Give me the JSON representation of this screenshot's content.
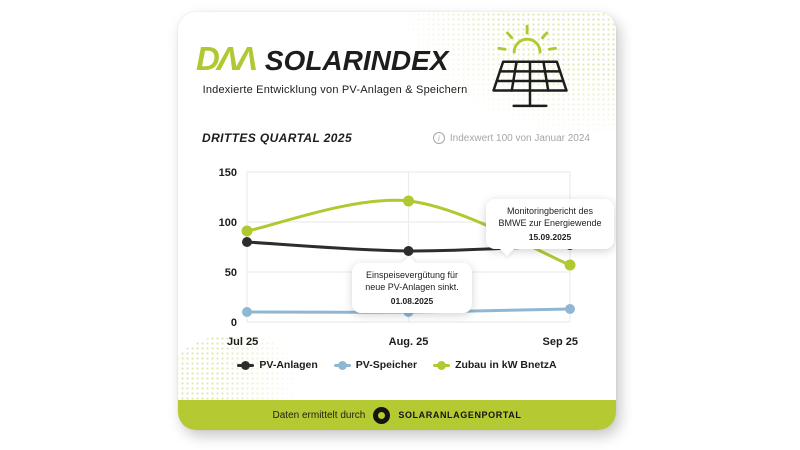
{
  "header": {
    "logo_text": "DΛΛ",
    "title": "SOLARINDEX",
    "subtitle": "Indexierte Entwicklung von PV-Anlagen & Speichern"
  },
  "section": {
    "heading": "DRITTES QUARTAL 2025",
    "index_note": "Indexwert 100 von Januar 2024"
  },
  "icons": {
    "info": "i",
    "solar_panel": "solar-panel-with-sun",
    "portal_logo": "black-ring"
  },
  "colors": {
    "brand_green": "#b2c832",
    "line_black": "#2d2d2d",
    "line_blue": "#8fb7d4",
    "grid": "#ececec",
    "tick_text": "#1d1d1b",
    "muted_text": "#a6a6a6"
  },
  "chart_data": {
    "type": "line",
    "categories": [
      "Jul 25",
      "Aug. 25",
      "Sep 25"
    ],
    "series": [
      {
        "name": "PV-Anlagen",
        "color": "#2d2d2d",
        "values": [
          80,
          71,
          77
        ]
      },
      {
        "name": "PV-Speicher",
        "color": "#8fb7d4",
        "values": [
          10,
          10,
          13
        ]
      },
      {
        "name": "Zubau in kW BnetzA",
        "color": "#b2c832",
        "values": [
          91,
          121,
          57
        ]
      }
    ],
    "ylim": [
      0,
      150
    ],
    "yticks": [
      0,
      50,
      100,
      150
    ],
    "grid": true,
    "smooth": true,
    "legend_position": "bottom"
  },
  "annotations": [
    {
      "text": "Einspeisevergütung für neue PV-Anlagen sinkt.",
      "date": "01.08.2025"
    },
    {
      "text": "Monitoringbericht des BMWE zur Energiewende",
      "date": "15.09.2025"
    }
  ],
  "footer": {
    "label": "Daten ermittelt durch",
    "brand": "SOLARANLAGENPORTAL"
  }
}
